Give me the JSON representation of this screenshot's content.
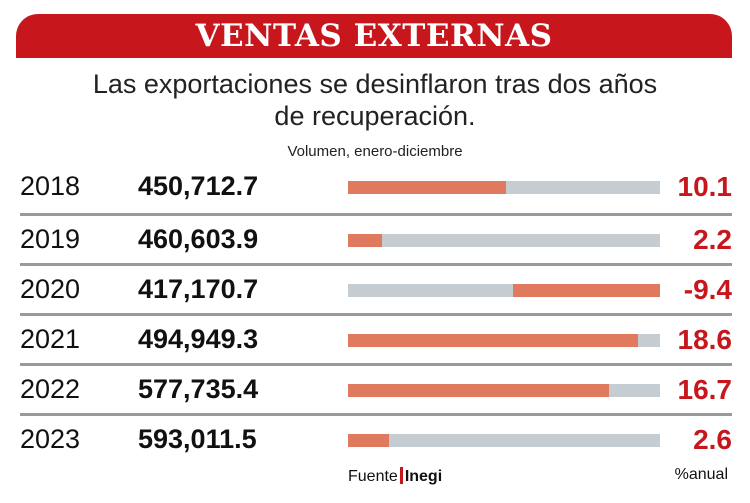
{
  "header": {
    "title": "VENTAS EXTERNAS",
    "subtitle_line1": "Las exportaciones se desinflaron tras dos años",
    "subtitle_line2": "de recuperación.",
    "unit_label": "Volumen, enero-diciembre"
  },
  "footer": {
    "source_label": "Fuente",
    "source_org": "Inegi",
    "pct_unit": "%anual"
  },
  "colors": {
    "banner": "#c8161d",
    "bar_fill": "#e07a5f",
    "bar_track": "#c5cdd2",
    "pct_text": "#c8161d"
  },
  "chart_data": {
    "type": "bar",
    "title": "VENTAS EXTERNAS",
    "subtitle": "Las exportaciones se desinflaron tras dos años de recuperación.",
    "xlabel": "",
    "ylabel": "%anual",
    "bar_range": [
      -20,
      20
    ],
    "categories": [
      "2018",
      "2019",
      "2020",
      "2021",
      "2022",
      "2023"
    ],
    "series": [
      {
        "name": "Volumen, enero-diciembre",
        "values": [
          "450,712.7",
          "460,603.9",
          "417,170.7",
          "494,949.3",
          "577,735.4",
          "593,011.5"
        ]
      },
      {
        "name": "%anual",
        "values": [
          10.1,
          2.2,
          -9.4,
          18.6,
          16.7,
          2.6
        ]
      }
    ],
    "rows": [
      {
        "year": "2018",
        "volume": "450,712.7",
        "pct": 10.1,
        "pct_label": "10.1"
      },
      {
        "year": "2019",
        "volume": "460,603.9",
        "pct": 2.2,
        "pct_label": "2.2"
      },
      {
        "year": "2020",
        "volume": "417,170.7",
        "pct": -9.4,
        "pct_label": "-9.4"
      },
      {
        "year": "2021",
        "volume": "494,949.3",
        "pct": 18.6,
        "pct_label": "18.6"
      },
      {
        "year": "2022",
        "volume": "577,735.4",
        "pct": 16.7,
        "pct_label": "16.7"
      },
      {
        "year": "2023",
        "volume": "593,011.5",
        "pct": 2.6,
        "pct_label": "2.6"
      }
    ]
  }
}
